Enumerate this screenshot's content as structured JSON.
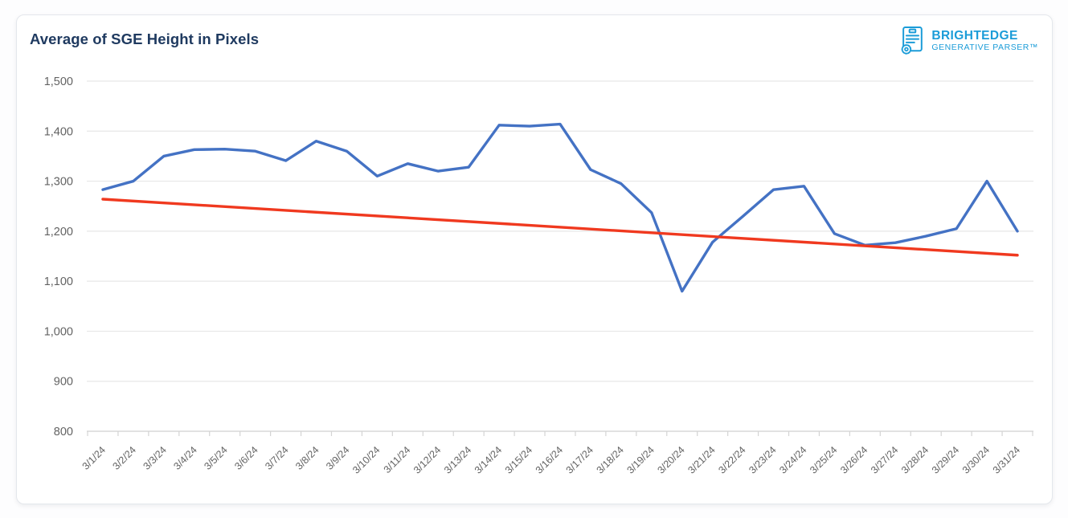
{
  "header": {
    "title": "Average of SGE Height in Pixels"
  },
  "logo": {
    "brand": "BRIGHTEDGE",
    "subbrand": "GENERATIVE PARSER™",
    "icon": "document-parser-icon"
  },
  "chart_data": {
    "type": "line",
    "title": "Average of SGE Height in Pixels",
    "x": [
      "3/1/24",
      "3/2/24",
      "3/3/24",
      "3/4/24",
      "3/5/24",
      "3/6/24",
      "3/7/24",
      "3/8/24",
      "3/9/24",
      "3/10/24",
      "3/11/24",
      "3/12/24",
      "3/13/24",
      "3/14/24",
      "3/15/24",
      "3/16/24",
      "3/17/24",
      "3/18/24",
      "3/19/24",
      "3/20/24",
      "3/21/24",
      "3/22/24",
      "3/23/24",
      "3/24/24",
      "3/25/24",
      "3/26/24",
      "3/27/24",
      "3/28/24",
      "3/29/24",
      "3/30/24",
      "3/31/24"
    ],
    "series": [
      {
        "name": "Average of SGE Height in Pixels",
        "color": "#4472c4",
        "values": [
          1283,
          1300,
          1350,
          1363,
          1364,
          1360,
          1341,
          1380,
          1360,
          1310,
          1335,
          1320,
          1328,
          1412,
          1410,
          1414,
          1323,
          1295,
          1237,
          1080,
          1178,
          1230,
          1283,
          1290,
          1195,
          1172,
          1177,
          1190,
          1205,
          1300,
          1200
        ]
      },
      {
        "name": "Linear trendline",
        "color": "#f0391f",
        "trend": true,
        "start": 1264,
        "end": 1152
      }
    ],
    "ylim": [
      800,
      1500
    ],
    "ytick_values": [
      800,
      900,
      1000,
      1100,
      1200,
      1300,
      1400,
      1500
    ],
    "ytick_labels": [
      "800",
      "900",
      "1,000",
      "1,100",
      "1,200",
      "1,300",
      "1,400",
      "1,500"
    ],
    "xlabel": "",
    "ylabel": "",
    "grid": true,
    "legend_position": "none",
    "x_label_rotation": -45
  },
  "style": {
    "title_color": "#1f3a60",
    "logo_color": "#1b9cd8",
    "gridline_color": "#e7e7e7",
    "axis_color": "#d4d4d4",
    "tick_label_color": "#636363"
  }
}
